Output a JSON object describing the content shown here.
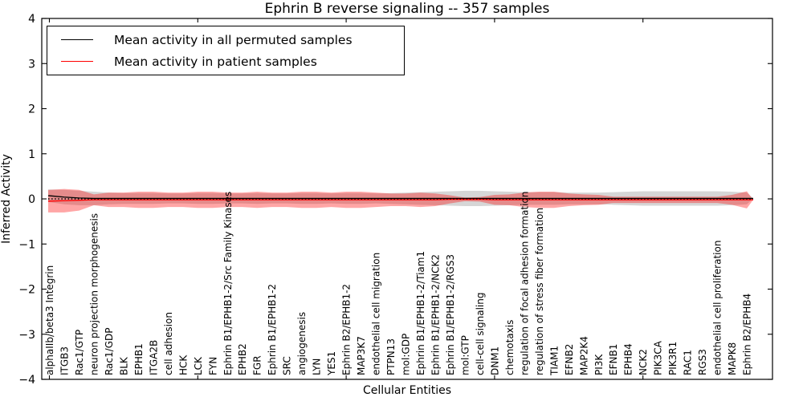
{
  "figure": {
    "title": "Ephrin B reverse signaling -- 357 samples",
    "xlabel": "Cellular Entities",
    "ylabel": "Inferred Activity",
    "legend": {
      "items": [
        {
          "label": "Mean activity in all permuted samples",
          "color": "#000000"
        },
        {
          "label": "Mean activity in patient samples",
          "color": "#ff0000"
        }
      ],
      "position": "upper left"
    }
  },
  "chart_data": {
    "type": "line",
    "title": "Ephrin B reverse signaling -- 357 samples",
    "xlabel": "Cellular Entities",
    "ylabel": "Inferred Activity",
    "ylim": [
      -4,
      4
    ],
    "yticks": [
      4,
      3,
      2,
      1,
      0,
      -1,
      -2,
      -3,
      -4
    ],
    "x_major_tick_indices": [
      0,
      10,
      20,
      30,
      40
    ],
    "grid": false,
    "legend_position": "upper left",
    "categories": [
      "alphaIIb/beta3 Integrin",
      "ITGB3",
      "Rac1/GTP",
      "neuron projection morphogenesis",
      "Rac1/GDP",
      "BLK",
      "EPHB1",
      "ITGA2B",
      "cell adhesion",
      "HCK",
      "LCK",
      "FYN",
      "Ephrin B1/EPHB1-2/Src Family Kinases",
      "EPHB2",
      "FGR",
      "Ephrin B1/EPHB1-2",
      "SRC",
      "angiogenesis",
      "LYN",
      "YES1",
      "Ephrin B2/EPHB1-2",
      "MAP3K7",
      "endothelial cell migration",
      "PTPN13",
      "mol:GDP",
      "Ephrin B1/EPHB1-2/Tiam1",
      "Ephrin B1/EPHB1-2/NCK2",
      "Ephrin B1/EPHB1-2/RGS3",
      "mol:GTP",
      "cell-cell signaling",
      "DNM1",
      "chemotaxis",
      "regulation of focal adhesion formation",
      "regulation of stress fiber formation",
      "TIAM1",
      "EFNB2",
      "MAP2K4",
      "PI3K",
      "EFNB1",
      "EPHB4",
      "NCK2",
      "PIK3CA",
      "PIK3R1",
      "RAC1",
      "RGS3",
      "endothelial cell proliferation",
      "MAPK8",
      "Ephrin B2/EPHB4"
    ],
    "series": [
      {
        "name": "Mean activity in all permuted samples",
        "color": "#000000",
        "line": "solid",
        "values": [
          0.07,
          0.04,
          0.02,
          0.01,
          0.01,
          0.01,
          0.01,
          0.01,
          0.01,
          0.01,
          0.01,
          0.01,
          0.01,
          0.01,
          0.01,
          0.01,
          0.01,
          0.01,
          0.01,
          0.01,
          0.01,
          0.01,
          0.01,
          0.01,
          0.01,
          0.01,
          0.01,
          0.01,
          0.01,
          0.01,
          0.01,
          0.01,
          0.01,
          0.01,
          0.01,
          0.01,
          0.01,
          0.01,
          0.01,
          0.01,
          0.01,
          0.01,
          0.01,
          0.01,
          0.01,
          0.01,
          0.01,
          0.01
        ]
      },
      {
        "name": "Mean activity in patient samples",
        "color": "#ff0000",
        "line": "solid",
        "values": [
          -0.05,
          -0.04,
          -0.03,
          -0.02,
          -0.02,
          -0.02,
          -0.02,
          -0.02,
          -0.02,
          -0.02,
          -0.02,
          -0.02,
          -0.02,
          -0.02,
          -0.02,
          -0.02,
          -0.02,
          -0.02,
          -0.02,
          -0.02,
          -0.02,
          -0.02,
          -0.02,
          -0.02,
          -0.02,
          -0.02,
          -0.02,
          -0.01,
          -0.01,
          -0.01,
          -0.02,
          -0.02,
          -0.02,
          -0.02,
          -0.02,
          -0.02,
          -0.02,
          -0.02,
          -0.02,
          -0.02,
          -0.02,
          -0.02,
          -0.02,
          -0.02,
          -0.02,
          -0.02,
          -0.02,
          -0.02
        ]
      },
      {
        "name": "zero reference",
        "color": "#000000",
        "line": "dotted",
        "constant": 0
      }
    ],
    "bands": [
      {
        "name": "permuted samples std band",
        "fill": "rgba(0,0,0,0.16)",
        "center_series": 0,
        "halfwidths": [
          0.14,
          0.16,
          0.16,
          0.15,
          0.13,
          0.12,
          0.12,
          0.12,
          0.11,
          0.11,
          0.12,
          0.12,
          0.11,
          0.11,
          0.12,
          0.11,
          0.11,
          0.12,
          0.12,
          0.11,
          0.12,
          0.12,
          0.11,
          0.12,
          0.13,
          0.14,
          0.15,
          0.16,
          0.17,
          0.17,
          0.16,
          0.15,
          0.14,
          0.14,
          0.14,
          0.13,
          0.13,
          0.13,
          0.14,
          0.15,
          0.16,
          0.16,
          0.16,
          0.16,
          0.16,
          0.16,
          0.15,
          0.13
        ]
      },
      {
        "name": "patient samples std band",
        "fill": "rgba(255,0,0,0.35)",
        "center_series": 1,
        "halfwidths": [
          0.25,
          0.26,
          0.23,
          0.12,
          0.16,
          0.16,
          0.18,
          0.18,
          0.16,
          0.16,
          0.18,
          0.18,
          0.16,
          0.16,
          0.18,
          0.16,
          0.16,
          0.18,
          0.18,
          0.16,
          0.18,
          0.18,
          0.16,
          0.14,
          0.14,
          0.16,
          0.14,
          0.09,
          0.04,
          0.05,
          0.11,
          0.12,
          0.16,
          0.18,
          0.18,
          0.14,
          0.12,
          0.11,
          0.07,
          0.07,
          0.07,
          0.07,
          0.07,
          0.07,
          0.07,
          0.07,
          0.11,
          0.19
        ]
      }
    ]
  }
}
